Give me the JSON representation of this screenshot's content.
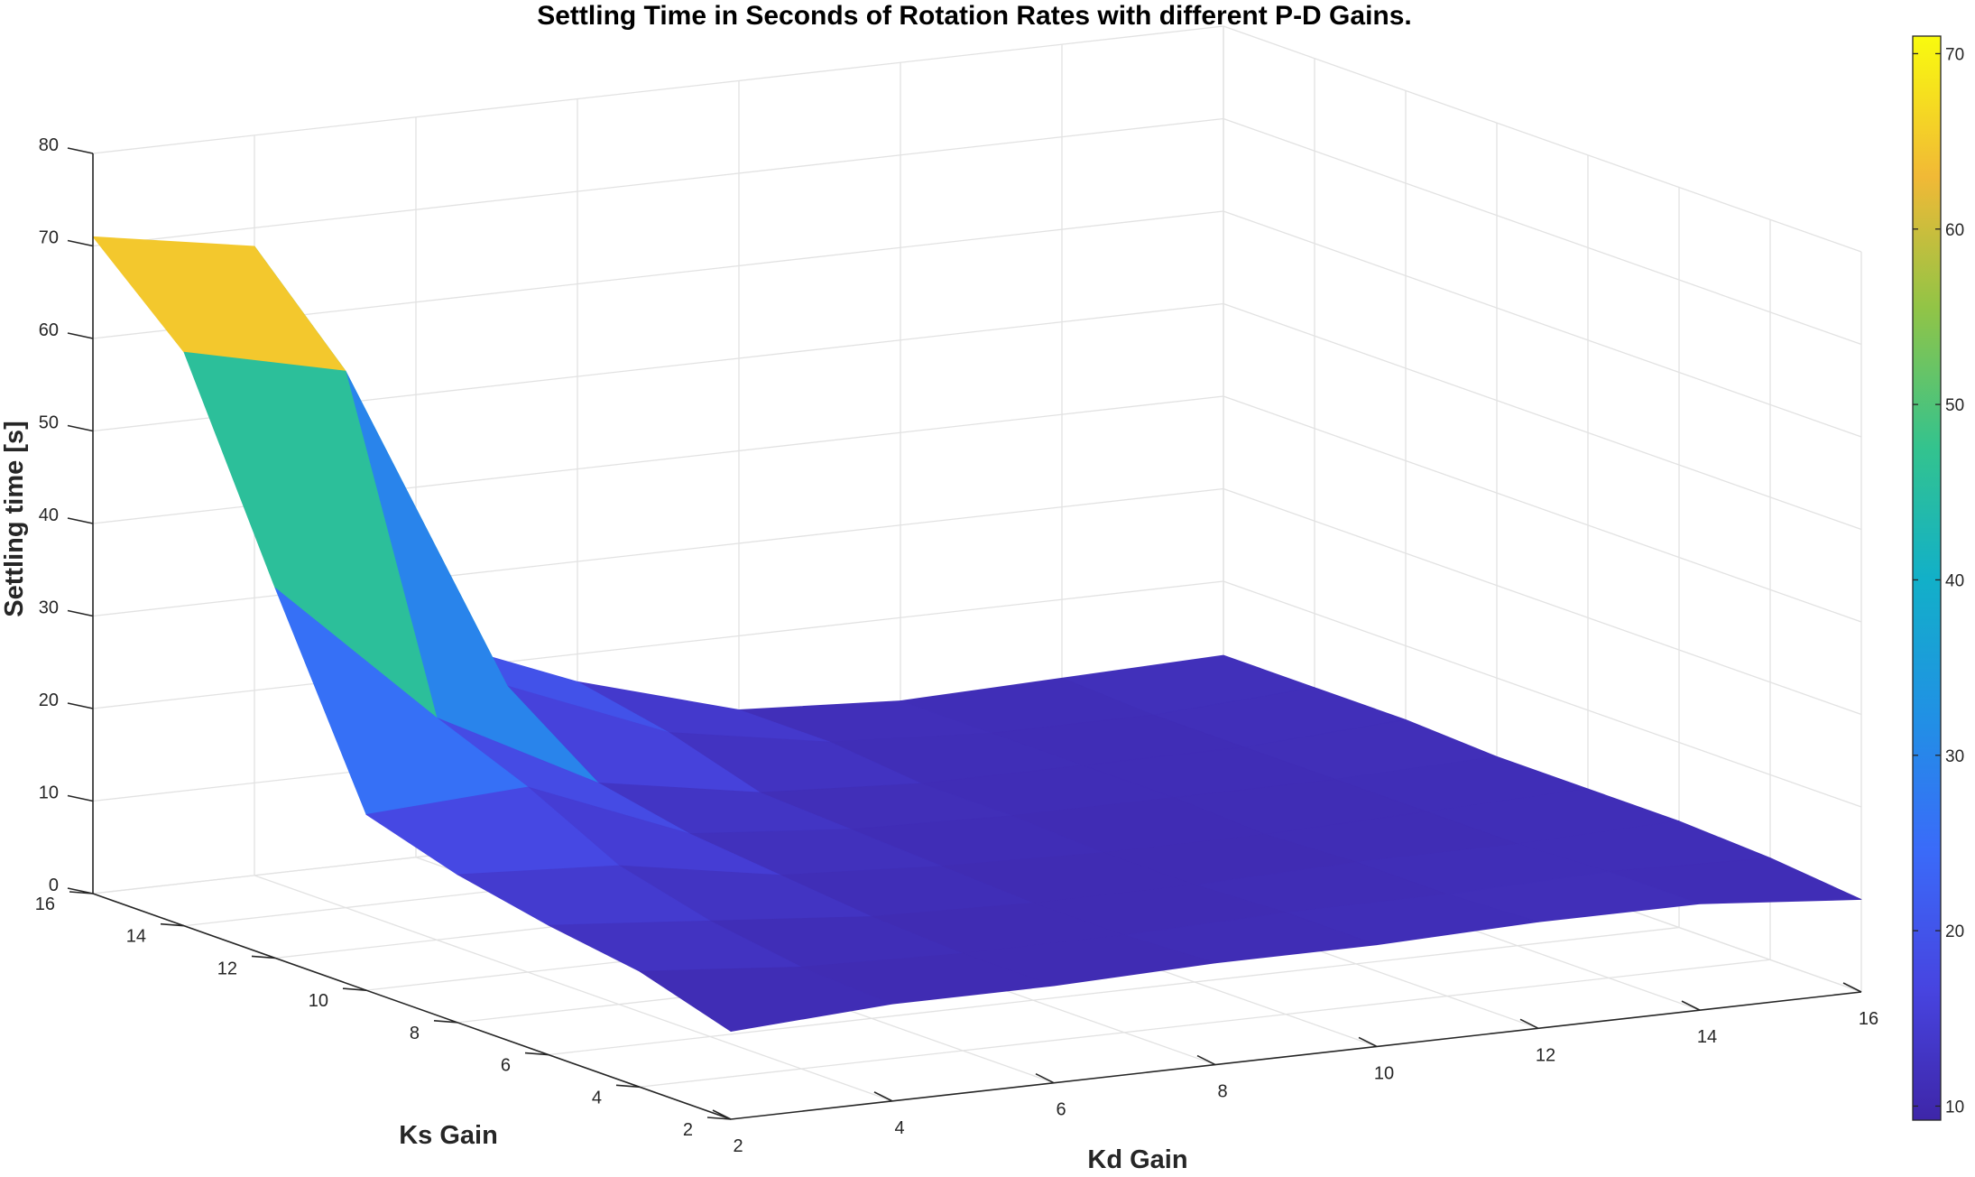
{
  "chart_data": {
    "type": "surface",
    "title": "Settling Time in Seconds of Rotation Rates with different P-D Gains.",
    "xlabel": "Kd Gain",
    "ylabel": "Ks Gain",
    "zlabel": "Settling time [s]",
    "x_ticks": [
      "2",
      "4",
      "6",
      "8",
      "10",
      "12",
      "14",
      "16"
    ],
    "y_ticks": [
      "2",
      "4",
      "6",
      "8",
      "10",
      "12",
      "14",
      "16"
    ],
    "z_ticks": [
      "0",
      "10",
      "20",
      "30",
      "40",
      "50",
      "60",
      "70",
      "80"
    ],
    "colorbar_ticks": [
      "10",
      "20",
      "30",
      "40",
      "50",
      "60",
      "70"
    ],
    "xlim": [
      2,
      16
    ],
    "ylim": [
      2,
      16
    ],
    "zlim": [
      0,
      80
    ],
    "clim": [
      9.2,
      71
    ],
    "colormap": "parula",
    "grid": true,
    "colorbar": "right",
    "x": [
      2,
      4,
      6,
      8,
      10,
      12,
      14,
      16
    ],
    "y": [
      2,
      4,
      6,
      8,
      10,
      12,
      14,
      16
    ],
    "z": [
      [
        9.5,
        10.5,
        10.5,
        11.0,
        11.0,
        11.5,
        11.5,
        10.0
      ],
      [
        12.5,
        11.0,
        10.5,
        10.5,
        11.0,
        11.0,
        11.5,
        11.0
      ],
      [
        14.0,
        12.5,
        11.0,
        10.5,
        10.5,
        11.0,
        11.0,
        11.5
      ],
      [
        16.0,
        15.0,
        12.0,
        11.0,
        10.5,
        10.5,
        11.0,
        11.5
      ],
      [
        19.0,
        20.0,
        13.0,
        11.5,
        11.0,
        11.0,
        11.0,
        11.5
      ],
      [
        40.0,
        24.0,
        15.0,
        12.0,
        11.0,
        11.0,
        11.0,
        12.0
      ],
      [
        62.0,
        58.0,
        22.0,
        15.0,
        12.0,
        11.0,
        11.0,
        12.0
      ],
      [
        71.0,
        68.0,
        24.0,
        17.0,
        12.0,
        11.0,
        11.5,
        12.0
      ]
    ]
  }
}
